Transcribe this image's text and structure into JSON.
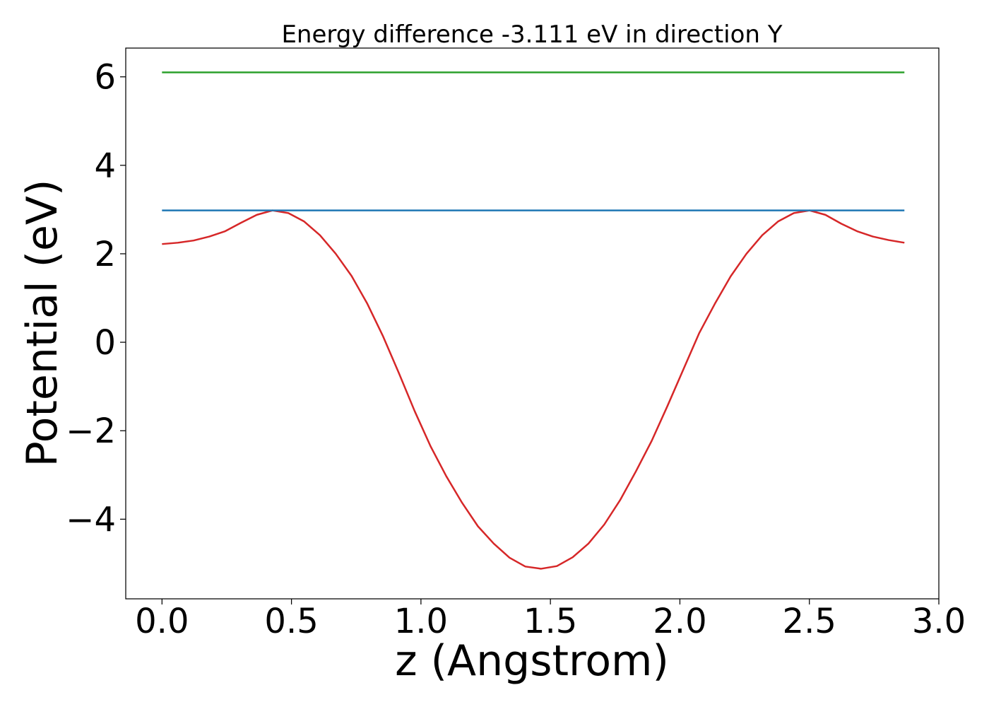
{
  "chart_data": {
    "type": "line",
    "title": "Energy difference -3.111 eV in direction Y",
    "xlabel": "z (Angstrom)",
    "ylabel": "Potential (eV)",
    "xlim": [
      -0.14,
      3.0
    ],
    "ylim": [
      -5.8,
      6.65
    ],
    "xticks": [
      0.0,
      0.5,
      1.0,
      1.5,
      2.0,
      2.5,
      3.0
    ],
    "xtick_labels": [
      "0.0",
      "0.5",
      "1.0",
      "1.5",
      "2.0",
      "2.5",
      "3.0"
    ],
    "yticks": [
      -4,
      -2,
      0,
      2,
      4,
      6
    ],
    "ytick_labels": [
      "−4",
      "−2",
      "0",
      "2",
      "4",
      "6"
    ],
    "grid": false,
    "series": [
      {
        "color": "#d62728",
        "x": [
          0.0,
          0.061,
          0.122,
          0.183,
          0.244,
          0.305,
          0.366,
          0.427,
          0.488,
          0.549,
          0.61,
          0.671,
          0.732,
          0.793,
          0.854,
          0.915,
          0.976,
          1.037,
          1.098,
          1.159,
          1.22,
          1.281,
          1.342,
          1.403,
          1.464,
          1.525,
          1.586,
          1.647,
          1.708,
          1.769,
          1.83,
          1.891,
          1.952,
          2.013,
          2.074,
          2.135,
          2.196,
          2.257,
          2.318,
          2.379,
          2.44,
          2.501,
          2.562,
          2.623,
          2.684,
          2.745,
          2.806,
          2.867
        ],
        "y": [
          2.22,
          2.25,
          2.3,
          2.39,
          2.51,
          2.7,
          2.88,
          2.98,
          2.92,
          2.73,
          2.42,
          2.0,
          1.5,
          0.87,
          0.13,
          -0.7,
          -1.56,
          -2.35,
          -3.03,
          -3.63,
          -4.16,
          -4.55,
          -4.87,
          -5.07,
          -5.12,
          -5.06,
          -4.86,
          -4.55,
          -4.12,
          -3.57,
          -2.92,
          -2.23,
          -1.44,
          -0.62,
          0.2,
          0.87,
          1.49,
          2.0,
          2.42,
          2.73,
          2.92,
          2.98,
          2.88,
          2.68,
          2.51,
          2.39,
          2.31,
          2.25
        ]
      },
      {
        "color": "#1f77b4",
        "x": [
          0.0,
          2.867
        ],
        "y": [
          2.98,
          2.98
        ]
      },
      {
        "color": "#2ca02c",
        "x": [
          0.0,
          2.867
        ],
        "y": [
          6.1,
          6.1
        ]
      }
    ]
  }
}
